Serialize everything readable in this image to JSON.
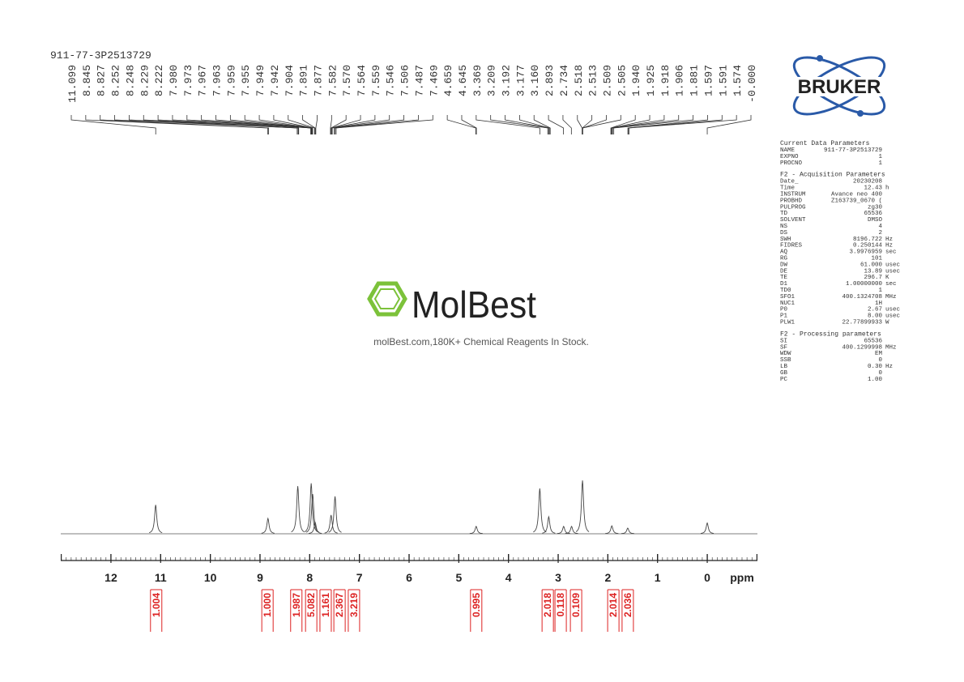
{
  "title": "911-77-3P2513729",
  "peak_labels": [
    "11.099",
    "8.845",
    "8.827",
    "8.252",
    "8.248",
    "8.229",
    "8.222",
    "7.980",
    "7.973",
    "7.967",
    "7.963",
    "7.959",
    "7.955",
    "7.949",
    "7.942",
    "7.904",
    "7.891",
    "7.877",
    "7.582",
    "7.570",
    "7.564",
    "7.559",
    "7.546",
    "7.506",
    "7.487",
    "7.469",
    "4.659",
    "4.645",
    "3.369",
    "3.209",
    "3.192",
    "3.177",
    "3.160",
    "2.893",
    "2.734",
    "2.518",
    "2.513",
    "2.509",
    "2.505",
    "1.940",
    "1.925",
    "1.918",
    "1.906",
    "1.881",
    "1.597",
    "1.591",
    "1.574",
    "-0.000"
  ],
  "axis": {
    "xlim": [
      13.01,
      -1.01
    ],
    "xticks": [
      12,
      11,
      10,
      9,
      8,
      7,
      6,
      5,
      4,
      3,
      2,
      1,
      0
    ],
    "unit": "ppm",
    "ylim": [
      0,
      100
    ]
  },
  "spectrum_peaks": [
    {
      "ppm": 11.1,
      "height": 51
    },
    {
      "ppm": 8.84,
      "height": 27
    },
    {
      "ppm": 8.24,
      "height": 84
    },
    {
      "ppm": 7.97,
      "height": 89
    },
    {
      "ppm": 7.94,
      "height": 70
    },
    {
      "ppm": 7.89,
      "height": 20
    },
    {
      "ppm": 7.57,
      "height": 33
    },
    {
      "ppm": 7.49,
      "height": 66
    },
    {
      "ppm": 4.65,
      "height": 13
    },
    {
      "ppm": 3.37,
      "height": 80
    },
    {
      "ppm": 3.19,
      "height": 30
    },
    {
      "ppm": 2.89,
      "height": 13
    },
    {
      "ppm": 2.73,
      "height": 13
    },
    {
      "ppm": 2.51,
      "height": 94
    },
    {
      "ppm": 1.92,
      "height": 14
    },
    {
      "ppm": 1.6,
      "height": 10
    },
    {
      "ppm": 0.0,
      "height": 19
    }
  ],
  "integrals": [
    {
      "label": "1.004",
      "ppm": 11.09
    },
    {
      "label": "1.000",
      "ppm": 8.85
    },
    {
      "label": "1.987",
      "ppm": 8.27
    },
    {
      "label": "5.082",
      "ppm": 7.97
    },
    {
      "label": "1.161",
      "ppm": 7.68
    },
    {
      "label": "2.367",
      "ppm": 7.4
    },
    {
      "label": "3.219",
      "ppm": 7.11
    },
    {
      "label": "0.995",
      "ppm": 4.65
    },
    {
      "label": "2.018",
      "ppm": 3.21
    },
    {
      "label": "0.118",
      "ppm": 2.95
    },
    {
      "label": "0.109",
      "ppm": 2.64
    },
    {
      "label": "2.014",
      "ppm": 1.89
    },
    {
      "label": "2.036",
      "ppm": 1.6
    }
  ],
  "logo": {
    "brand": "MolBest",
    "tagline": "molBest.com,180K+ Chemical Reagents In Stock.",
    "vendor": "BRUKER"
  },
  "parameters": [
    {
      "title": "Current Data Parameters",
      "rows": [
        [
          "NAME",
          "911-77-3P2513729"
        ],
        [
          "EXPNO",
          "1"
        ],
        [
          "PROCNO",
          "1"
        ]
      ]
    },
    {
      "title": "F2 - Acquisition Parameters",
      "rows": [
        [
          "Date_",
          "20230208"
        ],
        [
          "Time",
          "12.43",
          "h"
        ],
        [
          "INSTRUM",
          "Avance neo 400"
        ],
        [
          "PROBHD",
          "Z163739_0670 ("
        ],
        [
          "PULPROG",
          "zg30"
        ],
        [
          "TD",
          "65536"
        ],
        [
          "SOLVENT",
          "DMSO"
        ],
        [
          "NS",
          "4"
        ],
        [
          "DS",
          "2"
        ],
        [
          "SWH",
          "8196.722",
          "Hz"
        ],
        [
          "FIDRES",
          "0.250144",
          "Hz"
        ],
        [
          "AQ",
          "3.9976959",
          "sec"
        ],
        [
          "RG",
          "101"
        ],
        [
          "DW",
          "61.000",
          "usec"
        ],
        [
          "DE",
          "13.89",
          "usec"
        ],
        [
          "TE",
          "296.7",
          "K"
        ],
        [
          "D1",
          "1.00000000",
          "sec"
        ],
        [
          "TD0",
          "1"
        ],
        [
          "SFO1",
          "400.1324708",
          "MHz"
        ],
        [
          "NUC1",
          "1H"
        ],
        [
          "P0",
          "2.67",
          "usec"
        ],
        [
          "P1",
          "8.00",
          "usec"
        ],
        [
          "PLW1",
          "22.77899933",
          "W"
        ]
      ]
    },
    {
      "title": "F2 - Processing parameters",
      "rows": [
        [
          "SI",
          "65536"
        ],
        [
          "SF",
          "400.1299998",
          "MHz"
        ],
        [
          "WDW",
          "EM"
        ],
        [
          "SSB",
          "0"
        ],
        [
          "LB",
          "0.30",
          "Hz"
        ],
        [
          "GB",
          "0"
        ],
        [
          "PC",
          "1.00"
        ]
      ]
    }
  ]
}
